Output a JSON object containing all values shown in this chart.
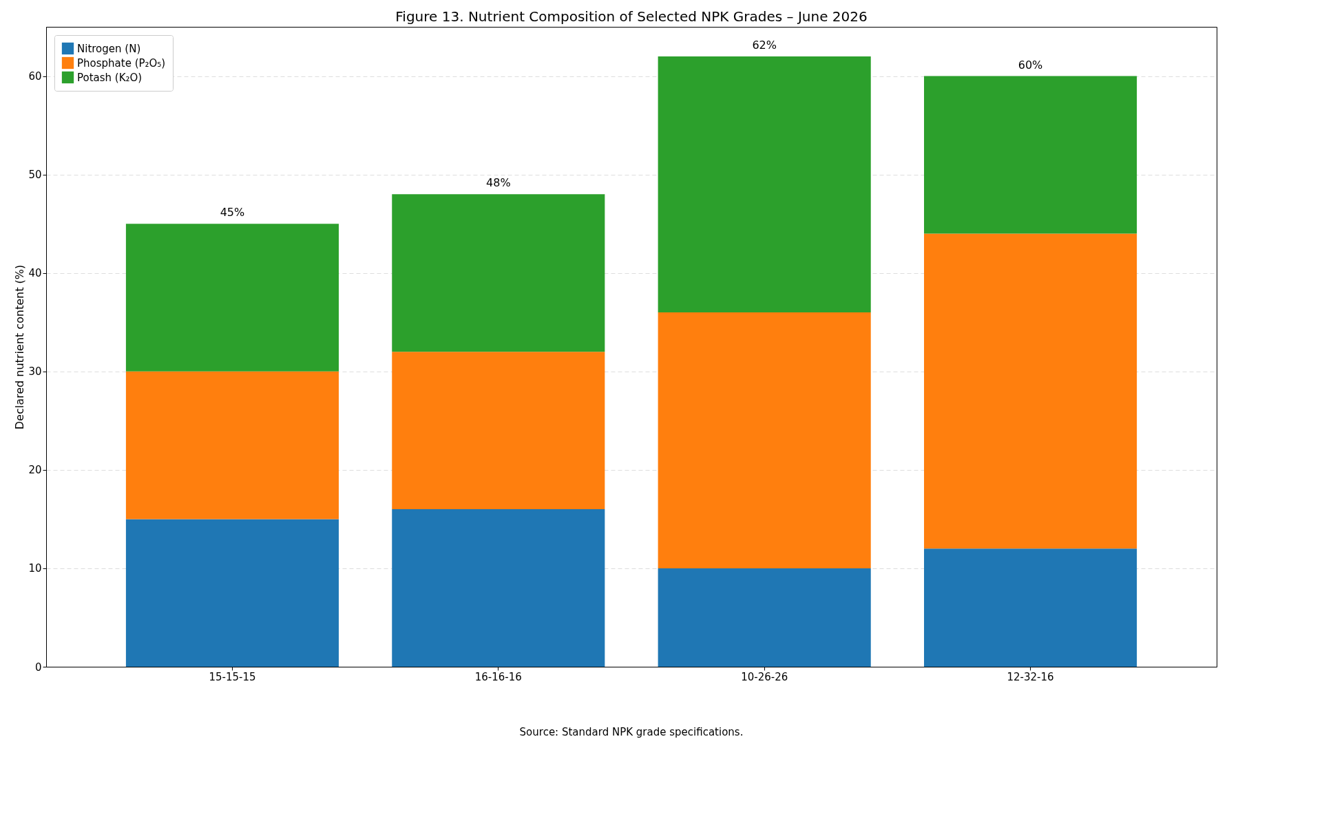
{
  "chart_data": {
    "type": "bar",
    "stacked": true,
    "title": "Figure 13. Nutrient Composition of Selected NPK Grades – June 2026",
    "ylabel": "Declared nutrient content (%)",
    "categories": [
      "15-15-15",
      "16-16-16",
      "10-26-26",
      "12-32-16"
    ],
    "series": [
      {
        "name": "Nitrogen (N)",
        "color": "#1f77b4",
        "values": [
          15,
          16,
          10,
          12
        ]
      },
      {
        "name": "Phosphate (P₂O₅)",
        "color": "#ff7f0e",
        "values": [
          15,
          16,
          26,
          32
        ]
      },
      {
        "name": "Potash (K₂O)",
        "color": "#2ca02c",
        "values": [
          15,
          16,
          26,
          16
        ]
      }
    ],
    "totals": [
      "45%",
      "48%",
      "62%",
      "60%"
    ],
    "ylim": [
      0,
      65
    ],
    "yticks": [
      0,
      10,
      20,
      30,
      40,
      50,
      60
    ],
    "grid": "y",
    "legend": "top left",
    "annotations": [
      "Source: Standard NPK grade specifications."
    ]
  }
}
